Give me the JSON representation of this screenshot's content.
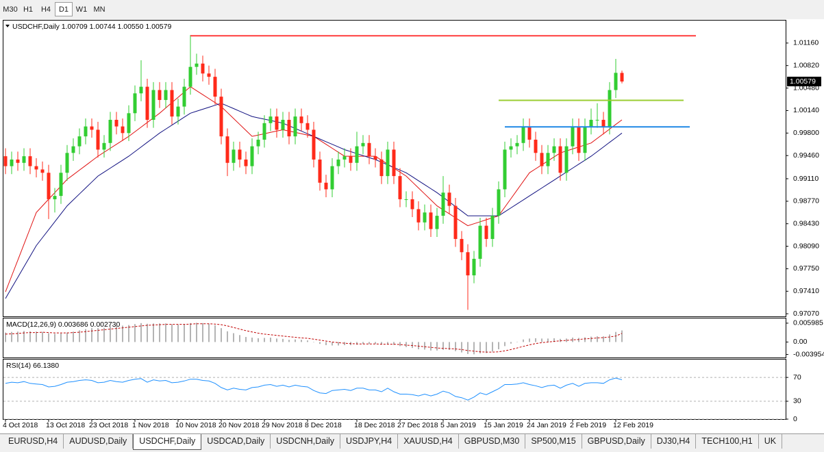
{
  "toolbar": [
    "M30",
    "H1",
    "H4",
    "D1",
    "W1",
    "MN"
  ],
  "chart_data": [
    {
      "type": "candlestick",
      "title": "USDCHF,Daily 1.00709 1.00744 1.00550 1.00579",
      "categories": [
        "4 Oct 2018",
        null,
        null,
        null,
        null,
        null,
        null,
        "13 Oct 2018",
        null,
        null,
        null,
        null,
        null,
        null,
        "23 Oct 2018",
        null,
        null,
        null,
        null,
        null,
        null,
        "1 Nov 2018",
        null,
        null,
        null,
        null,
        null,
        null,
        "10 Nov 2018",
        null,
        null,
        null,
        null,
        null,
        null,
        "20 Nov 2018",
        null,
        null,
        null,
        null,
        null,
        null,
        "29 Nov 2018",
        null,
        null,
        null,
        null,
        null,
        null,
        "8 Dec 2018",
        null,
        null,
        null,
        null,
        null,
        null,
        null,
        "18 Dec 2018",
        null,
        null,
        null,
        null,
        null,
        null,
        "27 Dec 2018",
        null,
        null,
        null,
        null,
        null,
        null,
        "5 Jan 2019",
        null,
        null,
        null,
        null,
        null,
        null,
        "15 Jan 2019",
        null,
        null,
        null,
        null,
        null,
        null,
        "24 Jan 2019",
        null,
        null,
        null,
        null,
        null,
        null,
        "2 Feb 2019",
        null,
        null,
        null,
        null,
        null,
        null,
        "12 Feb 2019",
        null
      ],
      "open": [
        0.9945,
        0.993,
        0.994,
        0.9935,
        0.9945,
        0.993,
        0.9925,
        0.992,
        0.988,
        0.9885,
        0.992,
        0.995,
        0.996,
        0.9975,
        0.999,
        0.9985,
        0.9955,
        0.9965,
        1.0,
        0.999,
        0.998,
        1.001,
        1.004,
        1.005,
        1.0,
        1.0045,
        1.003,
        1.0045,
        1.0005,
        1.002,
        1.005,
        1.008,
        1.0085,
        1.007,
        1.0065,
        1.0035,
        0.9975,
        0.9935,
        0.9955,
        0.994,
        0.993,
        0.996,
        0.997,
        0.9995,
        1.0005,
        0.9985,
        1.0,
        0.9975,
        1.0005,
        0.9995,
        0.9985,
        0.994,
        0.9905,
        0.9895,
        0.993,
        0.994,
        0.9945,
        0.9935,
        0.996,
        0.9965,
        0.9945,
        0.994,
        0.9915,
        0.9955,
        0.9915,
        0.988,
        0.988,
        0.9865,
        0.9845,
        0.986,
        0.9835,
        0.9855,
        0.989,
        0.987,
        0.982,
        0.98,
        0.9765,
        0.979,
        0.984,
        0.982,
        0.9855,
        0.9895,
        0.9955,
        0.996,
        0.9965,
        0.999,
        0.997,
        0.995,
        0.993,
        0.995,
        0.996,
        0.992,
        0.996,
        0.999,
        0.995,
        0.999,
        1.0,
        1.0,
        0.999,
        1.0045,
        1.00709
      ],
      "high": [
        0.9957,
        0.9952,
        0.9952,
        0.9957,
        0.9957,
        0.9942,
        0.9937,
        0.9932,
        0.9897,
        0.9932,
        0.9962,
        0.9972,
        0.9987,
        1.0002,
        1.0002,
        0.9997,
        0.9977,
        1.0012,
        1.0012,
        1.0002,
        1.0022,
        1.0052,
        1.009,
        1.0062,
        1.0057,
        1.0057,
        1.0057,
        1.0057,
        1.0032,
        1.0062,
        1.0128,
        1.01,
        1.0097,
        1.0082,
        1.0077,
        1.0047,
        0.9987,
        0.9967,
        0.9967,
        0.9952,
        0.9972,
        0.9982,
        1.0007,
        1.0017,
        1.0017,
        1.0012,
        1.0012,
        1.0017,
        1.0017,
        1.0007,
        0.9997,
        0.9952,
        0.9917,
        0.9942,
        0.9952,
        0.9957,
        0.9957,
        0.9982,
        0.9977,
        0.9977,
        0.9957,
        0.9952,
        0.9967,
        0.9967,
        0.9927,
        0.9892,
        0.9892,
        0.9877,
        0.9872,
        0.9872,
        0.9867,
        0.9915,
        0.9902,
        0.9882,
        0.9832,
        0.9812,
        0.9802,
        0.9852,
        0.9852,
        0.9867,
        0.9907,
        0.9967,
        0.9972,
        0.9977,
        1.0002,
        1.0002,
        0.9982,
        0.9962,
        0.9962,
        0.9972,
        0.9972,
        0.9972,
        1.0002,
        1.0002,
        1.0002,
        1.0017,
        1.0025,
        1.0012,
        1.0057,
        1.0092,
        1.00744
      ],
      "low": [
        0.9918,
        0.9918,
        0.9923,
        0.9923,
        0.9918,
        0.9913,
        0.9908,
        0.985,
        0.986,
        0.9873,
        0.9908,
        0.9938,
        0.9948,
        0.9963,
        0.9973,
        0.9943,
        0.9943,
        0.9953,
        0.9978,
        0.9968,
        0.9968,
        0.9998,
        1.0028,
        0.9988,
        0.9988,
        1.0018,
        1.0018,
        0.9993,
        0.9993,
        1.0008,
        1.0038,
        1.0068,
        1.0058,
        1.0053,
        1.0023,
        0.9963,
        0.9915,
        0.9923,
        0.9928,
        0.9918,
        0.9918,
        0.9948,
        0.9958,
        0.9983,
        0.9973,
        0.9973,
        0.9963,
        0.9963,
        0.9983,
        0.9973,
        0.9928,
        0.9893,
        0.9883,
        0.9883,
        0.9918,
        0.9928,
        0.9923,
        0.9923,
        0.9948,
        0.9933,
        0.9928,
        0.9903,
        0.9903,
        0.9903,
        0.9868,
        0.9868,
        0.9853,
        0.9833,
        0.9833,
        0.9823,
        0.9823,
        0.9843,
        0.9858,
        0.9808,
        0.9788,
        0.9713,
        0.9753,
        0.9778,
        0.9808,
        0.9808,
        0.9843,
        0.9883,
        0.9943,
        0.9948,
        0.9953,
        0.9958,
        0.9938,
        0.9918,
        0.9918,
        0.9938,
        0.9908,
        0.9908,
        0.9948,
        0.9938,
        0.9938,
        0.9978,
        0.9988,
        0.9978,
        0.9978,
        1.0033,
        1.0055
      ],
      "close": [
        0.993,
        0.994,
        0.9935,
        0.9945,
        0.993,
        0.9925,
        0.992,
        0.988,
        0.9885,
        0.992,
        0.995,
        0.996,
        0.9975,
        0.999,
        0.9985,
        0.9955,
        0.9965,
        1.0,
        0.999,
        0.998,
        1.001,
        1.004,
        1.005,
        1.0,
        1.0045,
        1.003,
        1.0045,
        1.0005,
        1.002,
        1.005,
        1.008,
        1.0085,
        1.007,
        1.0065,
        1.0035,
        0.9975,
        0.9935,
        0.9955,
        0.994,
        0.993,
        0.996,
        0.997,
        0.9995,
        1.0005,
        0.9985,
        1.0,
        0.9975,
        1.0005,
        0.9995,
        0.9985,
        0.994,
        0.9905,
        0.9895,
        0.993,
        0.994,
        0.9945,
        0.9935,
        0.996,
        0.9965,
        0.9945,
        0.994,
        0.9915,
        0.9955,
        0.9915,
        0.988,
        0.988,
        0.9865,
        0.9845,
        0.986,
        0.9835,
        0.9855,
        0.989,
        0.987,
        0.982,
        0.98,
        0.9765,
        0.979,
        0.984,
        0.982,
        0.9855,
        0.9895,
        0.9955,
        0.996,
        0.9965,
        0.999,
        0.997,
        0.995,
        0.993,
        0.995,
        0.996,
        0.992,
        0.996,
        0.999,
        0.995,
        0.999,
        1.0,
        1.0,
        0.999,
        1.0045,
        1.0071,
        1.00579
      ],
      "up_color": "#32cd32",
      "down_color": "#ff2a1a",
      "lines": [
        {
          "color": "#e01010",
          "values": [
            0.974,
            0.9764,
            0.9788,
            0.9812,
            0.9836,
            0.986,
            0.987,
            0.988,
            0.989,
            0.99,
            0.991,
            0.9917,
            0.9924,
            0.9931,
            0.9938,
            0.9945,
            0.9951,
            0.9957,
            0.9963,
            0.9969,
            0.9975,
            0.9982,
            0.9989,
            0.9996,
            1.0003,
            1.001,
            1.0018,
            1.0026,
            1.0034,
            1.0042,
            1.005,
            1.0044,
            1.0038,
            1.0032,
            1.0026,
            1.002,
            1.0011,
            1.0002,
            0.9993,
            0.9984,
            0.9975,
            0.9977,
            0.9979,
            0.9981,
            0.9983,
            0.9985,
            0.9983,
            0.9981,
            0.9979,
            0.9977,
            0.9975,
            0.9969,
            0.9963,
            0.9957,
            0.9951,
            0.9945,
            0.9945,
            0.9945,
            0.9945,
            0.9945,
            0.9945,
            0.9939,
            0.9933,
            0.9927,
            0.9921,
            0.9915,
            0.9906,
            0.9897,
            0.9888,
            0.9879,
            0.987,
            0.9864,
            0.9858,
            0.9852,
            0.9846,
            0.984,
            0.9843,
            0.9846,
            0.9849,
            0.9852,
            0.9855,
            0.9868,
            0.9881,
            0.9894,
            0.9907,
            0.992,
            0.9926,
            0.9932,
            0.9938,
            0.9944,
            0.995,
            0.9953,
            0.9956,
            0.9959,
            0.9962,
            0.9965,
            0.9972,
            0.9979,
            0.9986,
            0.9993,
            1.0
          ]
        },
        {
          "color": "#101080",
          "values": [
            0.973,
            0.9746,
            0.9762,
            0.9778,
            0.9794,
            0.981,
            0.9822,
            0.9834,
            0.9846,
            0.9858,
            0.987,
            0.9879,
            0.9888,
            0.9897,
            0.9906,
            0.9915,
            0.9921,
            0.9927,
            0.9933,
            0.9939,
            0.9945,
            0.9952,
            0.9959,
            0.9966,
            0.9973,
            0.998,
            0.9986,
            0.9992,
            0.9998,
            1.0004,
            1.001,
            1.0013,
            1.0016,
            1.0019,
            1.0022,
            1.0025,
            1.0021,
            1.0017,
            1.0013,
            1.0009,
            1.0005,
            1.0003,
            1.0001,
            0.9999,
            0.9997,
            0.9995,
            0.9991,
            0.9987,
            0.9983,
            0.9979,
            0.9975,
            0.9971,
            0.9967,
            0.9963,
            0.9959,
            0.9955,
            0.9952,
            0.9949,
            0.9946,
            0.9943,
            0.994,
            0.9936,
            0.9932,
            0.9928,
            0.9924,
            0.992,
            0.9914,
            0.9908,
            0.9902,
            0.9896,
            0.989,
            0.9883,
            0.9876,
            0.9869,
            0.9862,
            0.9855,
            0.9855,
            0.9855,
            0.9855,
            0.9855,
            0.9855,
            0.9861,
            0.9867,
            0.9873,
            0.9879,
            0.9885,
            0.9891,
            0.9897,
            0.9903,
            0.9909,
            0.9915,
            0.9921,
            0.9927,
            0.9933,
            0.9939,
            0.9945,
            0.9952,
            0.9959,
            0.9966,
            0.9973,
            0.998
          ]
        }
      ],
      "hlines": [
        {
          "value": 1.0127,
          "start": 30,
          "end": 112,
          "color": "#ff3b3b"
        },
        {
          "value": 1.00295,
          "start": 80,
          "end": 110,
          "color": "#9acd32"
        },
        {
          "value": 0.99893,
          "start": 81,
          "end": 111,
          "color": "#1e88e5"
        }
      ],
      "last_price": 1.00579,
      "ylim": [
        0.9703,
        1.015
      ],
      "yticks": [
        {
          "value": 1.0116,
          "label": "1.01160"
        },
        {
          "value": 1.0082,
          "label": "1.00820"
        },
        {
          "value": 1.0048,
          "label": "1.00480"
        },
        {
          "value": 1.0014,
          "label": "1.00140"
        },
        {
          "value": 0.998,
          "label": "0.99800"
        },
        {
          "value": 0.9946,
          "label": "0.99460"
        },
        {
          "value": 0.9911,
          "label": "0.99110"
        },
        {
          "value": 0.9877,
          "label": "0.98770"
        },
        {
          "value": 0.9843,
          "label": "0.98430"
        },
        {
          "value": 0.9809,
          "label": "0.98090"
        },
        {
          "value": 0.9775,
          "label": "0.97750"
        },
        {
          "value": 0.9741,
          "label": "0.97410"
        },
        {
          "value": 0.9707,
          "label": "0.97070"
        }
      ],
      "grid": false
    },
    {
      "type": "macd",
      "title": "MACD(12,26,9) 0.003686 0.002730",
      "values": [
        0.003,
        0.0032,
        0.0033,
        0.0035,
        0.0034,
        0.0033,
        0.0032,
        0.0028,
        0.0026,
        0.0027,
        0.003,
        0.0033,
        0.0037,
        0.0041,
        0.0044,
        0.0044,
        0.0045,
        0.0049,
        0.0051,
        0.0052,
        0.0054,
        0.0057,
        0.006,
        0.0058,
        0.0059,
        0.0059,
        0.0059,
        0.0056,
        0.0055,
        0.0057,
        0.006,
        0.0061,
        0.006,
        0.0058,
        0.0053,
        0.0044,
        0.0034,
        0.0028,
        0.0022,
        0.0016,
        0.0014,
        0.0012,
        0.0013,
        0.0014,
        0.0011,
        0.001,
        0.0007,
        0.0008,
        0.0007,
        0.0005,
        0.0,
        -0.0006,
        -0.001,
        -0.0011,
        -0.0011,
        -0.001,
        -0.001,
        -0.0008,
        -0.0006,
        -0.0006,
        -0.0006,
        -0.0008,
        -0.0007,
        -0.0009,
        -0.0013,
        -0.0016,
        -0.0019,
        -0.0023,
        -0.0024,
        -0.0027,
        -0.0027,
        -0.0025,
        -0.0025,
        -0.0029,
        -0.0033,
        -0.0038,
        -0.0039,
        -0.0036,
        -0.0035,
        -0.003,
        -0.0023,
        -0.0013,
        -0.0005,
        0.0001,
        0.0008,
        0.0011,
        0.0012,
        0.0011,
        0.0011,
        0.0012,
        0.001,
        0.0011,
        0.0014,
        0.0013,
        0.0015,
        0.0017,
        0.0018,
        0.0018,
        0.0024,
        0.0032,
        0.003686
      ],
      "signal": [
        0.0025,
        0.0026,
        0.0027,
        0.0029,
        0.003,
        0.003,
        0.0031,
        0.003,
        0.0029,
        0.0029,
        0.0029,
        0.003,
        0.0031,
        0.0033,
        0.0035,
        0.0037,
        0.0039,
        0.0041,
        0.0043,
        0.0045,
        0.0047,
        0.0049,
        0.0051,
        0.0053,
        0.0054,
        0.0055,
        0.0056,
        0.0056,
        0.0056,
        0.0056,
        0.0057,
        0.0058,
        0.0058,
        0.0058,
        0.0057,
        0.0055,
        0.0051,
        0.0046,
        0.0041,
        0.0036,
        0.0032,
        0.0028,
        0.0025,
        0.0023,
        0.0021,
        0.0019,
        0.0017,
        0.0015,
        0.0013,
        0.0012,
        0.0009,
        0.0006,
        0.0003,
        0.0,
        -0.0002,
        -0.0004,
        -0.0005,
        -0.0006,
        -0.0006,
        -0.0006,
        -0.0006,
        -0.0007,
        -0.0007,
        -0.0007,
        -0.0008,
        -0.001,
        -0.0011,
        -0.0013,
        -0.0015,
        -0.0017,
        -0.0019,
        -0.002,
        -0.0021,
        -0.0022,
        -0.0024,
        -0.0027,
        -0.0029,
        -0.0031,
        -0.0032,
        -0.0032,
        -0.0031,
        -0.0028,
        -0.0024,
        -0.0019,
        -0.0014,
        -0.0009,
        -0.0005,
        -0.0002,
        0.0,
        0.0002,
        0.0004,
        0.0005,
        0.0007,
        0.0008,
        0.001,
        0.0011,
        0.0013,
        0.0014,
        0.0016,
        0.0019,
        0.00273
      ],
      "color": "#b4b4b4",
      "signal_color": "#c00000",
      "ylim": [
        -0.00513,
        0.00748
      ],
      "yticks": [
        0.005985,
        {
          "value": 0,
          "label": "0.00"
        },
        -0.003954
      ],
      "grid": false
    },
    {
      "type": "line",
      "title": "RSI(14) 66.1380",
      "values": [
        60,
        62,
        61,
        63,
        60,
        59,
        58,
        54,
        55,
        58,
        62,
        63,
        65,
        66,
        65,
        61,
        62,
        65,
        63,
        62,
        65,
        67,
        68,
        62,
        66,
        64,
        65,
        61,
        62,
        64,
        67,
        67,
        65,
        64,
        60,
        53,
        49,
        52,
        50,
        49,
        53,
        54,
        57,
        58,
        55,
        57,
        54,
        57,
        55,
        54,
        48,
        44,
        43,
        48,
        49,
        50,
        48,
        52,
        52,
        49,
        49,
        46,
        52,
        46,
        42,
        42,
        41,
        39,
        42,
        39,
        42,
        47,
        44,
        38,
        36,
        32,
        37,
        44,
        41,
        46,
        51,
        58,
        58,
        59,
        61,
        58,
        56,
        53,
        56,
        57,
        52,
        57,
        60,
        55,
        60,
        61,
        61,
        60,
        66,
        69,
        66.138
      ],
      "color": "#1e90ff",
      "ylim": [
        0,
        100
      ],
      "yticks": [
        70,
        30,
        0
      ],
      "grid": true
    }
  ],
  "tabs": [
    "EURUSD,H4",
    "AUDUSD,Daily",
    "USDCHF,Daily",
    "USDCAD,Daily",
    "USDCNH,Daily",
    "USDJPY,H4",
    "XAUUSD,H4",
    "GBPUSD,M30",
    "SP500,M15",
    "GBPUSD,Daily",
    "DJ30,H4",
    "TECH100,H1",
    "UK"
  ]
}
